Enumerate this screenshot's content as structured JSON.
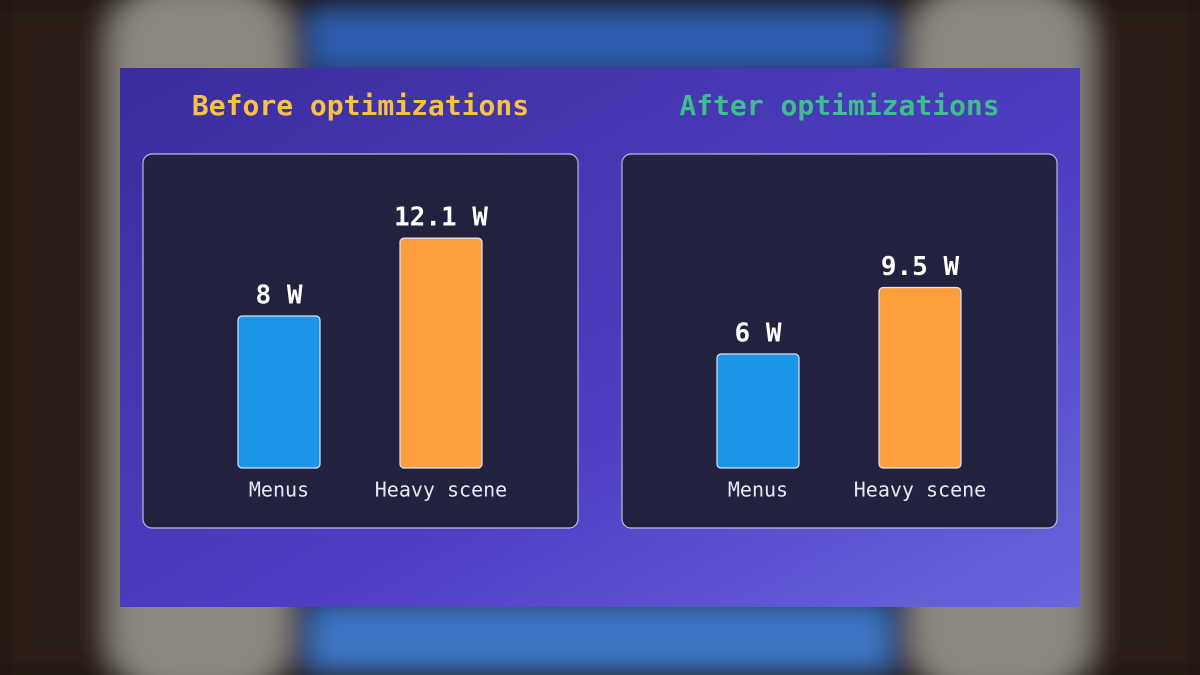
{
  "chart_data": [
    {
      "type": "bar",
      "title": "Before optimizations",
      "title_color": "#f7c244",
      "categories": [
        "Menus",
        "Heavy scene"
      ],
      "values": [
        8,
        12.1
      ],
      "value_labels": [
        "8 W",
        "12.1 W"
      ],
      "colors": [
        "#1b95e8",
        "#ff9e3d"
      ]
    },
    {
      "type": "bar",
      "title": "After optimizations",
      "title_color": "#3cbf8c",
      "categories": [
        "Menus",
        "Heavy scene"
      ],
      "values": [
        6,
        9.5
      ],
      "value_labels": [
        "6 W",
        "9.5 W"
      ],
      "colors": [
        "#1b95e8",
        "#ff9e3d"
      ]
    }
  ]
}
